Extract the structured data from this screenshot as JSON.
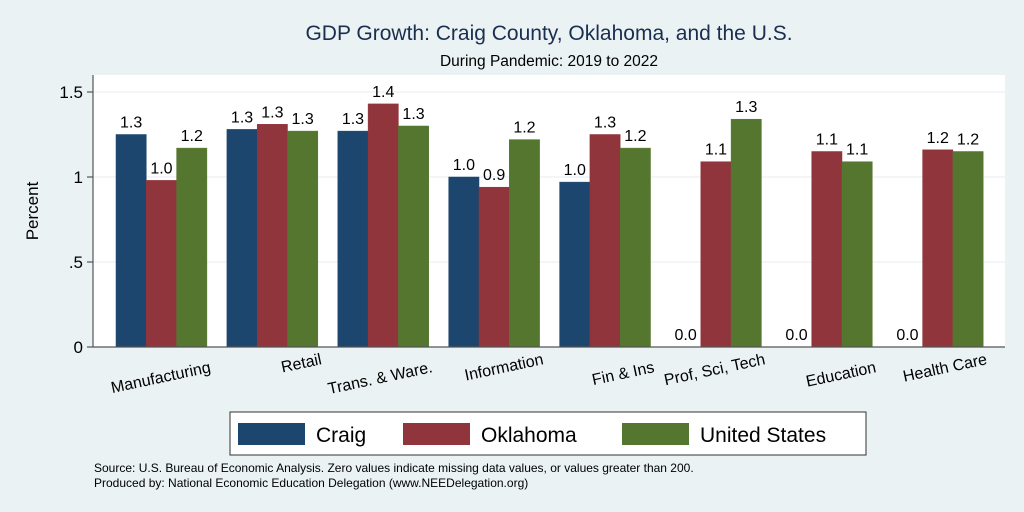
{
  "chart_data": {
    "type": "bar",
    "title": "GDP Growth: Craig County, Oklahoma, and the U.S.",
    "subtitle": "During Pandemic: 2019 to 2022",
    "xlabel": "",
    "ylabel": "Percent",
    "ylim": [
      0,
      1.6
    ],
    "yticks": [
      0,
      0.5,
      1,
      1.5
    ],
    "ytick_labels": [
      "0",
      ".5",
      "1",
      "1.5"
    ],
    "grid": true,
    "legend_position": "bottom",
    "categories": [
      "Manufacturing",
      "Retail",
      "Trans. & Ware.",
      "Information",
      "Fin & Ins",
      "Prof, Sci, Tech",
      "Education",
      "Health Care"
    ],
    "series": [
      {
        "name": "Craig",
        "color": "#1d466e",
        "values": [
          1.25,
          1.28,
          1.27,
          1.0,
          0.97,
          0.0,
          0.0,
          0.0
        ],
        "labels": [
          "1.3",
          "1.3",
          "1.3",
          "1.0",
          "1.0",
          "0.0",
          "0.0",
          "0.0"
        ]
      },
      {
        "name": "Oklahoma",
        "color": "#90353c",
        "values": [
          0.98,
          1.31,
          1.43,
          0.94,
          1.25,
          1.09,
          1.15,
          1.16
        ],
        "labels": [
          "1.0",
          "1.3",
          "1.4",
          "0.9",
          "1.3",
          "1.1",
          "1.1",
          "1.2"
        ]
      },
      {
        "name": "United States",
        "color": "#55762f",
        "values": [
          1.17,
          1.27,
          1.3,
          1.22,
          1.17,
          1.34,
          1.09,
          1.15
        ],
        "labels": [
          "1.2",
          "1.3",
          "1.3",
          "1.2",
          "1.2",
          "1.3",
          "1.1",
          "1.2"
        ]
      }
    ],
    "notes": [
      "Source: U.S. Bureau of Economic Analysis. Zero values indicate missing data values, or values greater than 200.",
      "Produced by: National Economic Education Delegation (www.NEEDelegation.org)"
    ]
  }
}
